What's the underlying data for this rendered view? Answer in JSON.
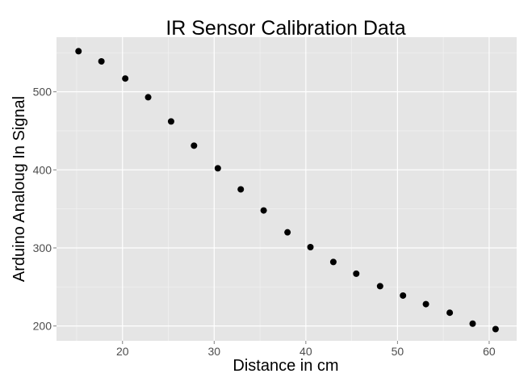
{
  "chart_data": {
    "type": "scatter",
    "title": "IR Sensor Calibration Data",
    "xlabel": "Distance in cm",
    "ylabel": "Arduino Analoug In Signal",
    "xlim": [
      12.8,
      63.0
    ],
    "ylim": [
      181,
      570
    ],
    "xticks": [
      20,
      30,
      40,
      50,
      60
    ],
    "yticks": [
      200,
      300,
      400,
      500
    ],
    "grid": true,
    "point_color": "#000000",
    "panel_background": "#e5e5e5",
    "grid_color": "#ffffff",
    "points": [
      {
        "x": 15.2,
        "y": 552
      },
      {
        "x": 17.7,
        "y": 539
      },
      {
        "x": 20.3,
        "y": 517
      },
      {
        "x": 22.8,
        "y": 493
      },
      {
        "x": 25.3,
        "y": 462
      },
      {
        "x": 27.8,
        "y": 431
      },
      {
        "x": 30.4,
        "y": 402
      },
      {
        "x": 32.9,
        "y": 375
      },
      {
        "x": 35.4,
        "y": 348
      },
      {
        "x": 38.0,
        "y": 320
      },
      {
        "x": 40.5,
        "y": 301
      },
      {
        "x": 43.0,
        "y": 282
      },
      {
        "x": 45.5,
        "y": 267
      },
      {
        "x": 48.1,
        "y": 251
      },
      {
        "x": 50.6,
        "y": 239
      },
      {
        "x": 53.1,
        "y": 228
      },
      {
        "x": 55.7,
        "y": 217
      },
      {
        "x": 58.2,
        "y": 203
      },
      {
        "x": 60.7,
        "y": 196
      }
    ]
  }
}
